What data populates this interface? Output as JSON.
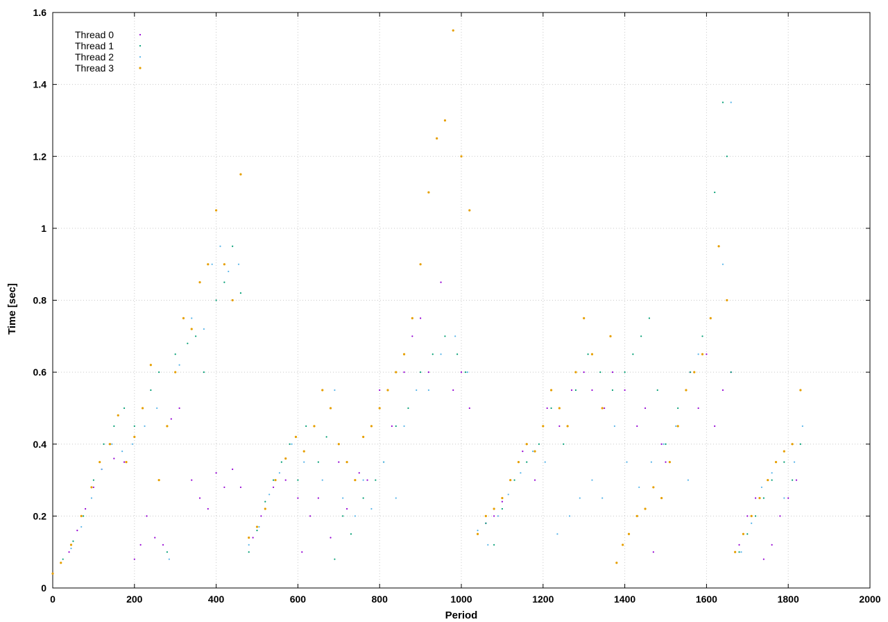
{
  "chart_data": {
    "type": "scatter",
    "title": "",
    "xlabel": "Period",
    "ylabel": "Time [sec]",
    "xlim": [
      0,
      2000
    ],
    "ylim": [
      0,
      1.6
    ],
    "xticks": [
      "0",
      "200",
      "400",
      "600",
      "800",
      "1000",
      "1200",
      "1400",
      "1600",
      "1800",
      "2000"
    ],
    "yticks": [
      "0",
      "0.2",
      "0.4",
      "0.6",
      "0.8",
      "1",
      "1.2",
      "1.4",
      "1.6"
    ],
    "grid": true,
    "legend_position": "top-left",
    "series": [
      {
        "name": "Thread 0",
        "color": "#9400d3",
        "points": [
          [
            0,
            0.04
          ],
          [
            20,
            0.07
          ],
          [
            40,
            0.1
          ],
          [
            60,
            0.16
          ],
          [
            80,
            0.22
          ],
          [
            100,
            0.28
          ],
          [
            120,
            0.33
          ],
          [
            150,
            0.36
          ],
          [
            175,
            0.35
          ],
          [
            200,
            0.08
          ],
          [
            215,
            0.12
          ],
          [
            230,
            0.2
          ],
          [
            250,
            0.14
          ],
          [
            270,
            0.12
          ],
          [
            290,
            0.47
          ],
          [
            310,
            0.5
          ],
          [
            340,
            0.3
          ],
          [
            360,
            0.25
          ],
          [
            380,
            0.22
          ],
          [
            400,
            0.32
          ],
          [
            420,
            0.28
          ],
          [
            440,
            0.33
          ],
          [
            460,
            0.28
          ],
          [
            490,
            0.14
          ],
          [
            510,
            0.2
          ],
          [
            540,
            0.28
          ],
          [
            570,
            0.3
          ],
          [
            600,
            0.25
          ],
          [
            610,
            0.1
          ],
          [
            630,
            0.2
          ],
          [
            650,
            0.25
          ],
          [
            680,
            0.14
          ],
          [
            700,
            0.35
          ],
          [
            720,
            0.22
          ],
          [
            750,
            0.32
          ],
          [
            770,
            0.3
          ],
          [
            800,
            0.55
          ],
          [
            830,
            0.45
          ],
          [
            860,
            0.6
          ],
          [
            880,
            0.7
          ],
          [
            900,
            0.75
          ],
          [
            920,
            0.6
          ],
          [
            950,
            0.85
          ],
          [
            980,
            0.55
          ],
          [
            1000,
            0.6
          ],
          [
            1020,
            0.5
          ],
          [
            1060,
            0.18
          ],
          [
            1080,
            0.2
          ],
          [
            1100,
            0.24
          ],
          [
            1120,
            0.3
          ],
          [
            1150,
            0.38
          ],
          [
            1180,
            0.3
          ],
          [
            1210,
            0.5
          ],
          [
            1240,
            0.45
          ],
          [
            1270,
            0.55
          ],
          [
            1300,
            0.6
          ],
          [
            1320,
            0.55
          ],
          [
            1350,
            0.5
          ],
          [
            1370,
            0.6
          ],
          [
            1400,
            0.55
          ],
          [
            1430,
            0.45
          ],
          [
            1450,
            0.5
          ],
          [
            1470,
            0.1
          ],
          [
            1490,
            0.4
          ],
          [
            1500,
            0.35
          ],
          [
            1530,
            0.45
          ],
          [
            1560,
            0.6
          ],
          [
            1580,
            0.5
          ],
          [
            1600,
            0.65
          ],
          [
            1620,
            0.45
          ],
          [
            1640,
            0.55
          ],
          [
            1660,
            0.6
          ],
          [
            1680,
            0.12
          ],
          [
            1700,
            0.2
          ],
          [
            1720,
            0.25
          ],
          [
            1740,
            0.08
          ],
          [
            1760,
            0.12
          ],
          [
            1780,
            0.2
          ],
          [
            1800,
            0.25
          ],
          [
            1820,
            0.3
          ]
        ]
      },
      {
        "name": "Thread 1",
        "color": "#009e73",
        "points": [
          [
            0,
            0.04
          ],
          [
            25,
            0.08
          ],
          [
            50,
            0.13
          ],
          [
            75,
            0.2
          ],
          [
            100,
            0.3
          ],
          [
            125,
            0.4
          ],
          [
            150,
            0.45
          ],
          [
            175,
            0.5
          ],
          [
            200,
            0.45
          ],
          [
            220,
            0.5
          ],
          [
            240,
            0.55
          ],
          [
            260,
            0.6
          ],
          [
            280,
            0.1
          ],
          [
            300,
            0.65
          ],
          [
            330,
            0.68
          ],
          [
            350,
            0.7
          ],
          [
            370,
            0.6
          ],
          [
            400,
            0.8
          ],
          [
            420,
            0.85
          ],
          [
            440,
            0.95
          ],
          [
            460,
            0.82
          ],
          [
            480,
            0.1
          ],
          [
            500,
            0.16
          ],
          [
            520,
            0.24
          ],
          [
            540,
            0.3
          ],
          [
            560,
            0.35
          ],
          [
            580,
            0.4
          ],
          [
            600,
            0.3
          ],
          [
            620,
            0.45
          ],
          [
            650,
            0.35
          ],
          [
            670,
            0.42
          ],
          [
            690,
            0.08
          ],
          [
            710,
            0.2
          ],
          [
            730,
            0.15
          ],
          [
            760,
            0.25
          ],
          [
            790,
            0.3
          ],
          [
            810,
            0.35
          ],
          [
            840,
            0.45
          ],
          [
            870,
            0.5
          ],
          [
            900,
            0.6
          ],
          [
            930,
            0.65
          ],
          [
            960,
            0.7
          ],
          [
            990,
            0.65
          ],
          [
            1010,
            0.6
          ],
          [
            1040,
            0.15
          ],
          [
            1060,
            0.18
          ],
          [
            1080,
            0.12
          ],
          [
            1100,
            0.22
          ],
          [
            1130,
            0.3
          ],
          [
            1160,
            0.35
          ],
          [
            1190,
            0.4
          ],
          [
            1220,
            0.5
          ],
          [
            1250,
            0.4
          ],
          [
            1280,
            0.55
          ],
          [
            1310,
            0.65
          ],
          [
            1340,
            0.6
          ],
          [
            1370,
            0.55
          ],
          [
            1400,
            0.6
          ],
          [
            1420,
            0.65
          ],
          [
            1440,
            0.7
          ],
          [
            1460,
            0.75
          ],
          [
            1480,
            0.55
          ],
          [
            1500,
            0.4
          ],
          [
            1530,
            0.5
          ],
          [
            1560,
            0.6
          ],
          [
            1590,
            0.7
          ],
          [
            1620,
            1.1
          ],
          [
            1640,
            1.35
          ],
          [
            1650,
            1.2
          ],
          [
            1660,
            0.6
          ],
          [
            1680,
            0.1
          ],
          [
            1700,
            0.15
          ],
          [
            1720,
            0.2
          ],
          [
            1740,
            0.25
          ],
          [
            1760,
            0.3
          ],
          [
            1790,
            0.35
          ],
          [
            1810,
            0.3
          ],
          [
            1830,
            0.4
          ]
        ]
      },
      {
        "name": "Thread 2",
        "color": "#56b4e9",
        "points": [
          [
            0,
            0.04
          ],
          [
            20,
            0.07
          ],
          [
            45,
            0.11
          ],
          [
            70,
            0.17
          ],
          [
            95,
            0.25
          ],
          [
            120,
            0.33
          ],
          [
            145,
            0.4
          ],
          [
            170,
            0.38
          ],
          [
            195,
            0.4
          ],
          [
            225,
            0.45
          ],
          [
            255,
            0.5
          ],
          [
            285,
            0.08
          ],
          [
            310,
            0.62
          ],
          [
            340,
            0.75
          ],
          [
            370,
            0.72
          ],
          [
            390,
            0.9
          ],
          [
            410,
            0.95
          ],
          [
            430,
            0.88
          ],
          [
            455,
            0.9
          ],
          [
            480,
            0.12
          ],
          [
            505,
            0.17
          ],
          [
            530,
            0.26
          ],
          [
            555,
            0.32
          ],
          [
            585,
            0.4
          ],
          [
            615,
            0.35
          ],
          [
            640,
            0.45
          ],
          [
            660,
            0.3
          ],
          [
            690,
            0.55
          ],
          [
            710,
            0.25
          ],
          [
            740,
            0.2
          ],
          [
            760,
            0.3
          ],
          [
            780,
            0.22
          ],
          [
            810,
            0.35
          ],
          [
            840,
            0.25
          ],
          [
            860,
            0.45
          ],
          [
            890,
            0.55
          ],
          [
            920,
            0.55
          ],
          [
            950,
            0.65
          ],
          [
            985,
            0.7
          ],
          [
            1015,
            0.6
          ],
          [
            1040,
            0.16
          ],
          [
            1065,
            0.12
          ],
          [
            1090,
            0.2
          ],
          [
            1115,
            0.26
          ],
          [
            1145,
            0.32
          ],
          [
            1175,
            0.38
          ],
          [
            1205,
            0.35
          ],
          [
            1235,
            0.15
          ],
          [
            1265,
            0.2
          ],
          [
            1290,
            0.25
          ],
          [
            1320,
            0.3
          ],
          [
            1345,
            0.25
          ],
          [
            1375,
            0.45
          ],
          [
            1405,
            0.35
          ],
          [
            1435,
            0.28
          ],
          [
            1465,
            0.35
          ],
          [
            1495,
            0.4
          ],
          [
            1525,
            0.45
          ],
          [
            1555,
            0.3
          ],
          [
            1580,
            0.65
          ],
          [
            1610,
            0.75
          ],
          [
            1640,
            0.9
          ],
          [
            1660,
            1.35
          ],
          [
            1685,
            0.1
          ],
          [
            1710,
            0.18
          ],
          [
            1735,
            0.28
          ],
          [
            1760,
            0.32
          ],
          [
            1790,
            0.25
          ],
          [
            1815,
            0.35
          ],
          [
            1835,
            0.45
          ]
        ]
      },
      {
        "name": "Thread 3",
        "color": "#e69f00",
        "points": [
          [
            0,
            0.04
          ],
          [
            20,
            0.07
          ],
          [
            45,
            0.12
          ],
          [
            70,
            0.2
          ],
          [
            95,
            0.28
          ],
          [
            115,
            0.35
          ],
          [
            140,
            0.4
          ],
          [
            160,
            0.48
          ],
          [
            180,
            0.35
          ],
          [
            200,
            0.42
          ],
          [
            220,
            0.5
          ],
          [
            240,
            0.62
          ],
          [
            260,
            0.3
          ],
          [
            280,
            0.45
          ],
          [
            300,
            0.6
          ],
          [
            320,
            0.75
          ],
          [
            340,
            0.72
          ],
          [
            360,
            0.85
          ],
          [
            380,
            0.9
          ],
          [
            400,
            1.05
          ],
          [
            420,
            0.9
          ],
          [
            440,
            0.8
          ],
          [
            460,
            1.15
          ],
          [
            480,
            0.14
          ],
          [
            500,
            0.17
          ],
          [
            520,
            0.22
          ],
          [
            545,
            0.3
          ],
          [
            570,
            0.36
          ],
          [
            595,
            0.42
          ],
          [
            615,
            0.38
          ],
          [
            640,
            0.45
          ],
          [
            660,
            0.55
          ],
          [
            680,
            0.5
          ],
          [
            700,
            0.4
          ],
          [
            720,
            0.35
          ],
          [
            740,
            0.3
          ],
          [
            760,
            0.42
          ],
          [
            780,
            0.45
          ],
          [
            800,
            0.5
          ],
          [
            820,
            0.55
          ],
          [
            840,
            0.6
          ],
          [
            860,
            0.65
          ],
          [
            880,
            0.75
          ],
          [
            900,
            0.9
          ],
          [
            920,
            1.1
          ],
          [
            940,
            1.25
          ],
          [
            960,
            1.3
          ],
          [
            980,
            1.55
          ],
          [
            1000,
            1.2
          ],
          [
            1020,
            1.05
          ],
          [
            1040,
            0.15
          ],
          [
            1060,
            0.2
          ],
          [
            1080,
            0.22
          ],
          [
            1100,
            0.25
          ],
          [
            1120,
            0.3
          ],
          [
            1140,
            0.35
          ],
          [
            1160,
            0.4
          ],
          [
            1180,
            0.38
          ],
          [
            1200,
            0.45
          ],
          [
            1220,
            0.55
          ],
          [
            1240,
            0.5
          ],
          [
            1260,
            0.45
          ],
          [
            1280,
            0.6
          ],
          [
            1300,
            0.75
          ],
          [
            1320,
            0.65
          ],
          [
            1345,
            0.5
          ],
          [
            1365,
            0.7
          ],
          [
            1380,
            0.07
          ],
          [
            1395,
            0.12
          ],
          [
            1410,
            0.15
          ],
          [
            1430,
            0.2
          ],
          [
            1450,
            0.22
          ],
          [
            1470,
            0.28
          ],
          [
            1490,
            0.25
          ],
          [
            1510,
            0.35
          ],
          [
            1530,
            0.45
          ],
          [
            1550,
            0.55
          ],
          [
            1570,
            0.6
          ],
          [
            1590,
            0.65
          ],
          [
            1610,
            0.75
          ],
          [
            1630,
            0.95
          ],
          [
            1650,
            0.8
          ],
          [
            1670,
            0.1
          ],
          [
            1690,
            0.15
          ],
          [
            1710,
            0.2
          ],
          [
            1730,
            0.25
          ],
          [
            1750,
            0.3
          ],
          [
            1770,
            0.35
          ],
          [
            1790,
            0.38
          ],
          [
            1810,
            0.4
          ],
          [
            1830,
            0.55
          ]
        ]
      }
    ]
  }
}
